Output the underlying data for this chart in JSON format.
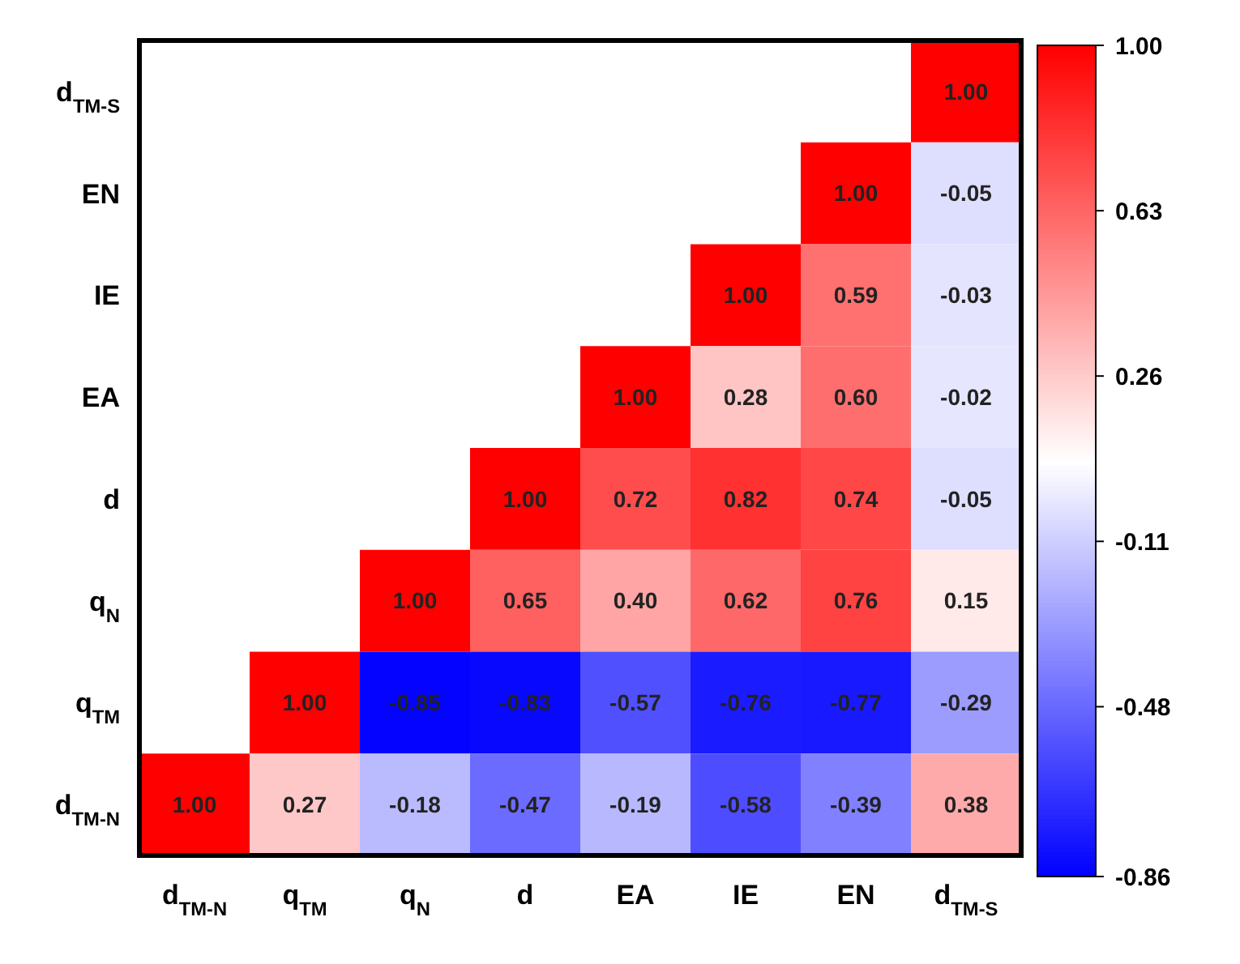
{
  "chart_data": {
    "type": "heatmap",
    "categories": [
      "d$_{TM-N}$",
      "q$_{TM}$",
      "q$_{N}$",
      "d",
      "EA",
      "IE",
      "EN",
      "d$_{TM-S}$"
    ],
    "y_categories": [
      "d$_{TM-S}$",
      "EN",
      "IE",
      "EA",
      "d",
      "q$_{N}$",
      "q$_{TM}$",
      "d$_{TM-N}$"
    ],
    "cells": [
      [
        null,
        null,
        null,
        null,
        null,
        null,
        null,
        1.0
      ],
      [
        null,
        null,
        null,
        null,
        null,
        null,
        1.0,
        -0.05
      ],
      [
        null,
        null,
        null,
        null,
        null,
        1.0,
        0.59,
        -0.03
      ],
      [
        null,
        null,
        null,
        null,
        1.0,
        0.28,
        0.6,
        -0.02
      ],
      [
        null,
        null,
        null,
        1.0,
        0.72,
        0.82,
        0.74,
        -0.05
      ],
      [
        null,
        null,
        1.0,
        0.65,
        0.4,
        0.62,
        0.76,
        0.15
      ],
      [
        null,
        1.0,
        -0.85,
        -0.83,
        -0.57,
        -0.76,
        -0.77,
        -0.29
      ],
      [
        1.0,
        0.27,
        -0.18,
        -0.47,
        -0.19,
        -0.58,
        -0.39,
        0.38
      ]
    ],
    "cell_labels": [
      [
        null,
        null,
        null,
        null,
        null,
        null,
        null,
        "1.00"
      ],
      [
        null,
        null,
        null,
        null,
        null,
        null,
        "1.00",
        "-0.05"
      ],
      [
        null,
        null,
        null,
        null,
        null,
        "1.00",
        "0.59",
        "-0.03"
      ],
      [
        null,
        null,
        null,
        null,
        "1.00",
        "0.28",
        "0.60",
        "-0.02"
      ],
      [
        null,
        null,
        null,
        "1.00",
        "0.72",
        "0.82",
        "0.74",
        "-0.05"
      ],
      [
        null,
        null,
        "1.00",
        "0.65",
        "0.40",
        "0.62",
        "0.76",
        "0.15"
      ],
      [
        null,
        "1.00",
        "-0.85",
        "-0.83",
        "-0.57",
        "-0.76",
        "-0.77",
        "-0.29"
      ],
      [
        "1.00",
        "0.27",
        "-0.18",
        "-0.47",
        "-0.19",
        "-0.58",
        "-0.39",
        "0.38"
      ]
    ],
    "clim": [
      -0.86,
      1.0
    ],
    "cticks": [
      {
        "value": -0.86,
        "label": "-0.86"
      },
      {
        "value": -0.48,
        "label": "-0.48"
      },
      {
        "value": -0.11,
        "label": "-0.11"
      },
      {
        "value": 0.26,
        "label": "0.26"
      },
      {
        "value": 0.63,
        "label": "0.63"
      },
      {
        "value": 1.0,
        "label": "1.00"
      }
    ]
  }
}
